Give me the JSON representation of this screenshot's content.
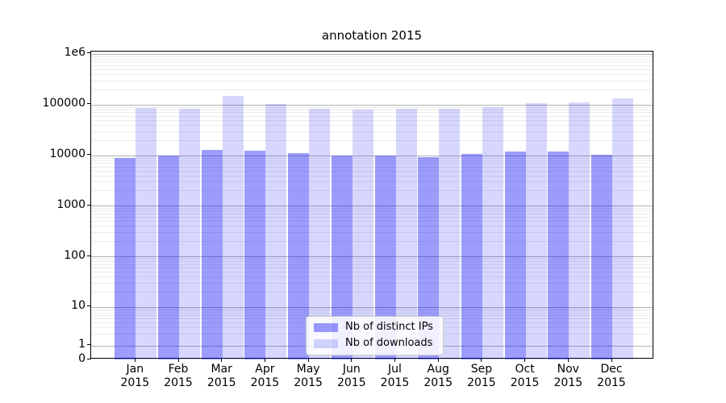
{
  "chart_data": {
    "type": "bar",
    "title": "annotation 2015",
    "yscale": "symlog",
    "grid": "both (major gray, minor light)",
    "legend_position": "lower center of plot",
    "categories": [
      "Jan\n2015",
      "Feb\n2015",
      "Mar\n2015",
      "Apr\n2015",
      "May\n2015",
      "Jun\n2015",
      "Jul\n2015",
      "Aug\n2015",
      "Sep\n2015",
      "Oct\n2015",
      "Nov\n2015",
      "Dec\n2015"
    ],
    "y_ticks": [
      {
        "label": "1e6",
        "value": 1000000
      },
      {
        "label": "100000",
        "value": 100000
      },
      {
        "label": "10000",
        "value": 10000
      },
      {
        "label": "1000",
        "value": 1000
      },
      {
        "label": "100",
        "value": 100
      },
      {
        "label": "10",
        "value": 10
      },
      {
        "label": "1",
        "value": 1
      },
      {
        "label": "0",
        "value": 0
      }
    ],
    "ylim": [
      0,
      1000000
    ],
    "series": [
      {
        "name": "Nb of distinct IPs",
        "color": "rgba(8,8,248,0.40)",
        "hex_on_white": "#9c9cfc",
        "values": [
          8800,
          9700,
          12800,
          12500,
          10900,
          10000,
          9700,
          9300,
          10800,
          11900,
          12000,
          10200
        ]
      },
      {
        "name": "Nb of downloads",
        "color": "rgba(8,8,248,0.16)",
        "hex_on_white": "#d8d8fe",
        "values": [
          86000,
          83000,
          149000,
          101000,
          83000,
          79000,
          83000,
          81000,
          87000,
          105000,
          110000,
          134000
        ]
      }
    ]
  }
}
